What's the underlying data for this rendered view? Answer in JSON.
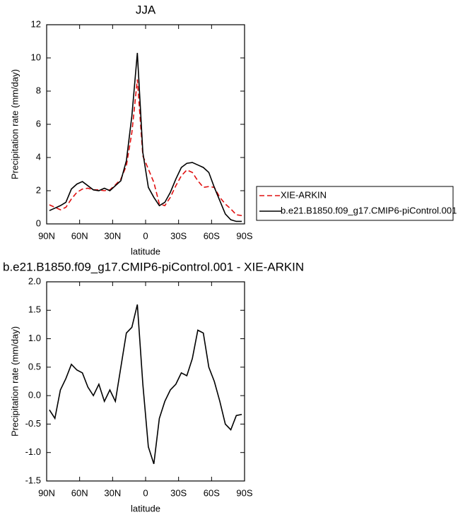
{
  "chart_data": [
    {
      "type": "line",
      "title": "JJA",
      "xlabel": "latitude",
      "ylabel": "Precipitation rate (mm/day)",
      "x": [
        87.5,
        82.5,
        77.5,
        72.5,
        67.5,
        62.5,
        57.5,
        52.5,
        47.5,
        42.5,
        37.5,
        32.5,
        27.5,
        22.5,
        17.5,
        12.5,
        7.5,
        2.5,
        -2.5,
        -7.5,
        -12.5,
        -17.5,
        -22.5,
        -27.5,
        -32.5,
        -37.5,
        -42.5,
        -47.5,
        -52.5,
        -57.5,
        -62.5,
        -67.5,
        -72.5,
        -77.5,
        -82.5,
        -87.5
      ],
      "series": [
        {
          "name": "XIE-ARKIN",
          "color": "#e01010",
          "dashed": true,
          "values": [
            1.15,
            1.0,
            0.85,
            1.0,
            1.5,
            1.9,
            2.1,
            2.15,
            2.05,
            2.05,
            2.0,
            2.05,
            2.35,
            2.7,
            3.5,
            5.5,
            8.7,
            4.1,
            3.3,
            2.5,
            1.2,
            1.1,
            1.6,
            2.3,
            2.9,
            3.25,
            3.1,
            2.6,
            2.2,
            2.25,
            2.2,
            1.6,
            1.2,
            0.9,
            0.55,
            0.5
          ]
        },
        {
          "name": "b.e21.B1850.f09_g17.CMIP6-piControl.001",
          "color": "#000000",
          "dashed": false,
          "values": [
            0.8,
            0.95,
            1.1,
            1.3,
            2.1,
            2.4,
            2.55,
            2.3,
            2.05,
            2.0,
            2.15,
            2.0,
            2.3,
            2.6,
            3.8,
            6.5,
            10.3,
            4.3,
            2.2,
            1.6,
            1.1,
            1.3,
            1.9,
            2.7,
            3.4,
            3.65,
            3.7,
            3.55,
            3.4,
            3.1,
            2.2,
            1.4,
            0.6,
            0.25,
            0.15,
            0.15
          ]
        }
      ],
      "xlim": [
        90,
        -90
      ],
      "xticks": [
        {
          "value": 90,
          "label": "90N"
        },
        {
          "value": 60,
          "label": "60N"
        },
        {
          "value": 30,
          "label": "30N"
        },
        0,
        {
          "value": -30,
          "label": "30S"
        },
        {
          "value": -60,
          "label": "60S"
        },
        {
          "value": -90,
          "label": "90S"
        }
      ],
      "ylim": [
        0,
        12
      ],
      "yticks": [
        0,
        2,
        4,
        6,
        8,
        10,
        12
      ],
      "legend": "right"
    },
    {
      "type": "line",
      "title": "b.e21.B1850.f09_g17.CMIP6-piControl.001 - XIE-ARKIN",
      "xlabel": "latitude",
      "ylabel": "Precipitation rate (mm/day)",
      "x": [
        87.5,
        82.5,
        77.5,
        72.5,
        67.5,
        62.5,
        57.5,
        52.5,
        47.5,
        42.5,
        37.5,
        32.5,
        27.5,
        22.5,
        17.5,
        12.5,
        7.5,
        2.5,
        -2.5,
        -7.5,
        -12.5,
        -17.5,
        -22.5,
        -27.5,
        -32.5,
        -37.5,
        -42.5,
        -47.5,
        -52.5,
        -57.5,
        -62.5,
        -67.5,
        -72.5,
        -77.5,
        -82.5,
        -87.5
      ],
      "values": [
        -0.25,
        -0.4,
        0.1,
        0.3,
        0.55,
        0.45,
        0.4,
        0.15,
        0.0,
        0.2,
        -0.1,
        0.1,
        -0.1,
        0.5,
        1.1,
        1.2,
        1.6,
        0.2,
        -0.9,
        -1.2,
        -0.4,
        -0.1,
        0.1,
        0.2,
        0.4,
        0.35,
        0.65,
        1.15,
        1.1,
        0.5,
        0.25,
        -0.1,
        -0.5,
        -0.6,
        -0.35,
        -0.33
      ],
      "color": "#000000",
      "xlim": [
        90,
        -90
      ],
      "xticks": [
        {
          "value": 90,
          "label": "90N"
        },
        {
          "value": 60,
          "label": "60N"
        },
        {
          "value": 30,
          "label": "30N"
        },
        0,
        {
          "value": -30,
          "label": "30S"
        },
        {
          "value": -60,
          "label": "60S"
        },
        {
          "value": -90,
          "label": "90S"
        }
      ],
      "ylim": [
        -1.5,
        2.0
      ],
      "yticks": [
        -1.5,
        {
          "value": -1.0,
          "label": "-1.0"
        },
        -0.5,
        {
          "value": 0.0,
          "label": "0.0"
        },
        0.5,
        {
          "value": 1.0,
          "label": "1.0"
        },
        1.5,
        {
          "value": 2.0,
          "label": "2.0"
        }
      ]
    }
  ]
}
